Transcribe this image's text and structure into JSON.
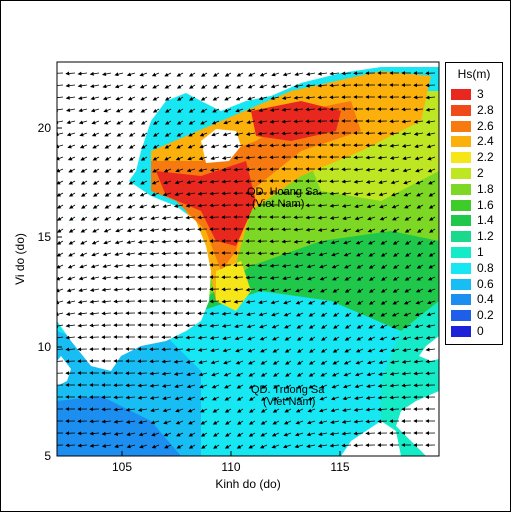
{
  "map": {
    "x_axis_label": "Kinh do (do)",
    "y_axis_label": "Vi do (do)",
    "x_ticks": [
      "105",
      "110",
      "115"
    ],
    "y_ticks": [
      "5",
      "10",
      "15",
      "20"
    ],
    "lon_range": [
      102,
      119.5
    ],
    "lat_range": [
      5,
      23
    ],
    "labels": {
      "paracel_line1": "QD. Hoang Sa",
      "paracel_line2": "(Viet Nam)",
      "spratly_line1": "QD. Truong Sa",
      "spratly_line2": "(Viet Nam)"
    },
    "colors": {
      "land": "#ffffff",
      "arrows": "#000000"
    }
  },
  "legend": {
    "title": "Hs(m)",
    "items": [
      {
        "label": "3",
        "color": "#e8281e"
      },
      {
        "label": "2.8",
        "color": "#f04a1a"
      },
      {
        "label": "2.6",
        "color": "#f77a10"
      },
      {
        "label": "2.4",
        "color": "#fbb00c"
      },
      {
        "label": "2.2",
        "color": "#f6e618"
      },
      {
        "label": "2",
        "color": "#bfe622"
      },
      {
        "label": "1.8",
        "color": "#7cd825"
      },
      {
        "label": "1.6",
        "color": "#3ecc2a"
      },
      {
        "label": "1.4",
        "color": "#1fc84a"
      },
      {
        "label": "1.2",
        "color": "#1ad88c"
      },
      {
        "label": "1",
        "color": "#16ebc8"
      },
      {
        "label": "0.8",
        "color": "#16e7f2"
      },
      {
        "label": "0.6",
        "color": "#18bdf4"
      },
      {
        "label": "0.4",
        "color": "#1c8ef0"
      },
      {
        "label": "0.2",
        "color": "#1f5ee8"
      },
      {
        "label": "0",
        "color": "#1c22d8"
      }
    ]
  }
}
